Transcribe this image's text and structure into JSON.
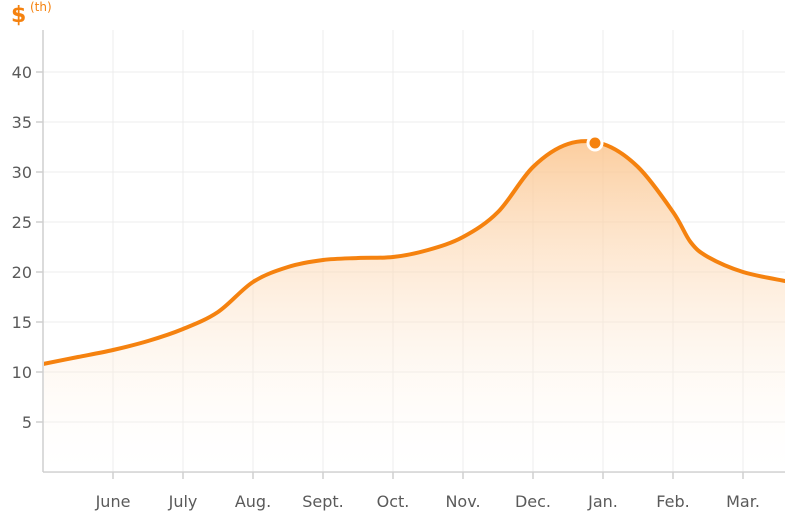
{
  "unit_label": {
    "symbol": "$",
    "suffix": "(th)"
  },
  "colors": {
    "accent": "#f5820f",
    "fill_top": "#fbc58e",
    "fill_bottom": "#ffffff",
    "grid": "#ececec",
    "axis": "#cfcfcf",
    "tick_text": "#5a5a5a"
  },
  "chart_data": {
    "type": "area",
    "title": "",
    "xlabel": "",
    "ylabel": "$ (th)",
    "categories": [
      "June",
      "July",
      "Aug.",
      "Sept.",
      "Oct.",
      "Nov.",
      "Dec.",
      "Jan.",
      "Feb.",
      "Mar."
    ],
    "y_ticks": [
      5,
      10,
      15,
      20,
      25,
      30,
      35,
      40
    ],
    "ylim": [
      0,
      45
    ],
    "grid": true,
    "series": [
      {
        "values_x": [
          -1.0,
          -0.5,
          0,
          0.5,
          1.0,
          1.5,
          2.0,
          2.5,
          3.0,
          3.5,
          4.0,
          4.5,
          5.0,
          5.5,
          6.0,
          6.5,
          7.0,
          7.5,
          8.0,
          8.25,
          8.5,
          9.0,
          9.6
        ],
        "values_y": [
          10.8,
          11.5,
          12.2,
          13.1,
          14.3,
          16.0,
          19.0,
          20.5,
          21.2,
          21.4,
          21.5,
          22.2,
          23.5,
          26.0,
          30.5,
          32.8,
          32.8,
          30.5,
          26.0,
          23.0,
          21.5,
          20.0,
          19.1
        ]
      }
    ],
    "highlight": {
      "x": 7.0,
      "y": 32.9
    }
  }
}
